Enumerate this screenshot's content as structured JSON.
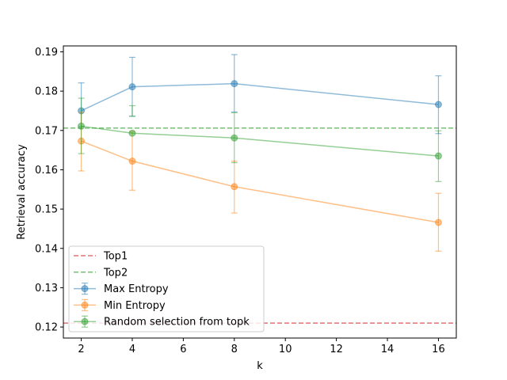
{
  "chart_data": {
    "type": "line",
    "xlabel": "k",
    "ylabel": "Retrieval accuracy",
    "xlim": [
      1.3,
      16.7
    ],
    "ylim": [
      0.1172,
      0.1915
    ],
    "xticks": [
      2,
      4,
      6,
      8,
      10,
      12,
      14,
      16
    ],
    "yticks": [
      0.12,
      0.13,
      0.14,
      0.15,
      0.16,
      0.17,
      0.18,
      0.19
    ],
    "xtick_labels": [
      "2",
      "4",
      "6",
      "8",
      "10",
      "12",
      "14",
      "16"
    ],
    "ytick_labels": [
      "0.12",
      "0.13",
      "0.14",
      "0.15",
      "0.16",
      "0.17",
      "0.18",
      "0.19"
    ],
    "grid": false,
    "legend_position": "lower-left",
    "hlines": [
      {
        "name": "Top1",
        "y": 0.121,
        "color": "#d62728"
      },
      {
        "name": "Top2",
        "y": 0.1706,
        "color": "#2ca02c"
      }
    ],
    "x": [
      2,
      4,
      8,
      16
    ],
    "series": [
      {
        "name": "Max Entropy",
        "color": "#1f77b4",
        "values": [
          0.175,
          0.1811,
          0.1819,
          0.1766
        ],
        "err_low": [
          0.171,
          0.1736,
          0.1747,
          0.1692
        ],
        "err_high": [
          0.1821,
          0.1886,
          0.1893,
          0.1839
        ]
      },
      {
        "name": "Min Entropy",
        "color": "#ff7f0e",
        "values": [
          0.1673,
          0.1622,
          0.1557,
          0.1466
        ],
        "err_low": [
          0.1597,
          0.1548,
          0.149,
          0.1393
        ],
        "err_high": [
          0.1746,
          0.1697,
          0.1622,
          0.154
        ]
      },
      {
        "name": "Random selection from topk",
        "color": "#2ca02c",
        "values": [
          0.1711,
          0.1693,
          0.1681,
          0.1635
        ],
        "err_low": [
          0.1641,
          0.1736,
          0.1618,
          0.157
        ],
        "err_high": [
          0.1782,
          0.1763,
          0.1745,
          0.1699
        ]
      }
    ]
  }
}
